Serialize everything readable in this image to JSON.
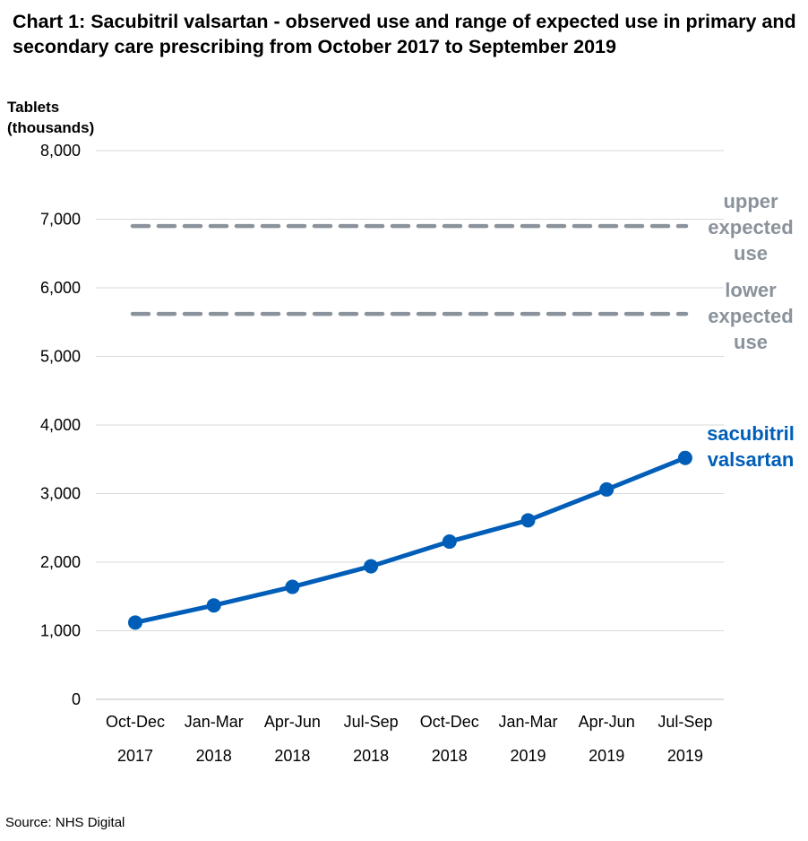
{
  "title": "Chart 1: Sacubitril valsartan - observed use and range of expected use in primary and secondary care prescribing from October 2017 to September 2019",
  "yunit_line1": "Tablets",
  "yunit_line2": "(thousands)",
  "source": "Source: NHS Digital",
  "colors": {
    "series": "#005eb8",
    "reference": "#8a929b",
    "grid": "#d9d9d9"
  },
  "chart_data": {
    "type": "line",
    "title": "Chart 1: Sacubitril valsartan - observed use and range of expected use in primary and secondary care prescribing from October 2017 to September 2019",
    "ylabel": "Tablets (thousands)",
    "ylim": [
      0,
      8000
    ],
    "yticks": [
      0,
      1000,
      2000,
      3000,
      4000,
      5000,
      6000,
      7000,
      8000
    ],
    "ytick_labels": [
      "0",
      "1,000",
      "2,000",
      "3,000",
      "4,000",
      "5,000",
      "6,000",
      "7,000",
      "8,000"
    ],
    "grid": true,
    "categories": [
      [
        "Oct-Dec",
        "2017"
      ],
      [
        "Jan-Mar",
        "2018"
      ],
      [
        "Apr-Jun",
        "2018"
      ],
      [
        "Jul-Sep",
        "2018"
      ],
      [
        "Oct-Dec",
        "2018"
      ],
      [
        "Jan-Mar",
        "2019"
      ],
      [
        "Apr-Jun",
        "2019"
      ],
      [
        "Jul-Sep",
        "2019"
      ]
    ],
    "series": [
      {
        "name": "sacubitril valsartan",
        "label_lines": [
          "sacubitril",
          "valsartan"
        ],
        "values": [
          1120,
          1370,
          1640,
          1940,
          2300,
          2610,
          3060,
          3520
        ]
      }
    ],
    "reference_lines": [
      {
        "name": "upper expected use",
        "label_lines": [
          "upper",
          "expected",
          "use"
        ],
        "value": 6900
      },
      {
        "name": "lower expected use",
        "label_lines": [
          "lower",
          "expected",
          "use"
        ],
        "value": 5620
      }
    ]
  }
}
